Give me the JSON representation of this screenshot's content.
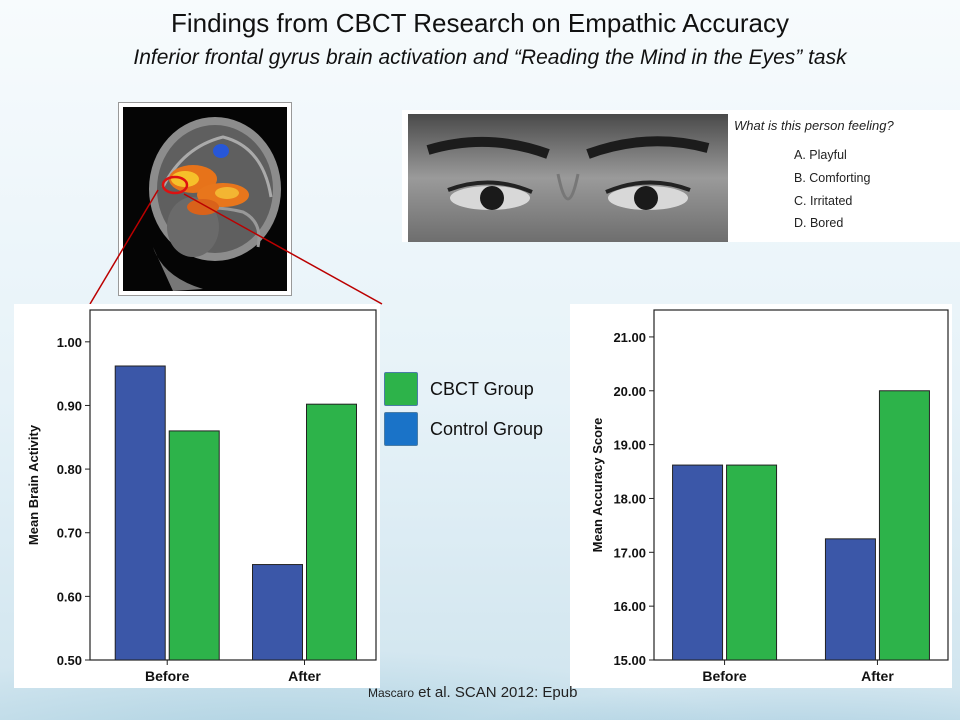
{
  "slide": {
    "title": "Findings from CBCT Research on Empathic Accuracy",
    "subtitle": "Inferior frontal gyrus brain activation and “Reading the Mind in the Eyes” task"
  },
  "eyes_task": {
    "question": "What is this person feeling?",
    "options": [
      "A.  Playful",
      "B.  Comforting",
      "C.  Irritated",
      "D.  Bored"
    ]
  },
  "legend": [
    {
      "label": "CBCT Group",
      "color": "#2db34a"
    },
    {
      "label": "Control Group",
      "color": "#1a73c8"
    }
  ],
  "colors": {
    "control_bar": "#3b57a8",
    "cbct_bar": "#2db34a"
  },
  "citation": {
    "author": "Mascaro",
    "rest": " et al. SCAN 2012: Epub"
  },
  "chart_data": [
    {
      "type": "bar",
      "categories": [
        "Before",
        "After"
      ],
      "series": [
        {
          "values": [
            0.962,
            0.65
          ]
        },
        {
          "values": [
            0.86,
            0.902
          ]
        }
      ],
      "ylabel": "Mean Brain Activity",
      "ylim": [
        0.5,
        1.05
      ],
      "yticks": [
        "0.50",
        "0.60",
        "0.70",
        "0.80",
        "0.90",
        "1.00"
      ]
    },
    {
      "type": "bar",
      "categories": [
        "Before",
        "After"
      ],
      "series": [
        {
          "values": [
            18.62,
            17.25
          ]
        },
        {
          "values": [
            18.62,
            20.0
          ]
        }
      ],
      "ylabel": "Mean Accuracy Score",
      "ylim": [
        15.0,
        21.5
      ],
      "yticks": [
        "15.00",
        "16.00",
        "17.00",
        "18.00",
        "19.00",
        "20.00",
        "21.00"
      ]
    }
  ]
}
